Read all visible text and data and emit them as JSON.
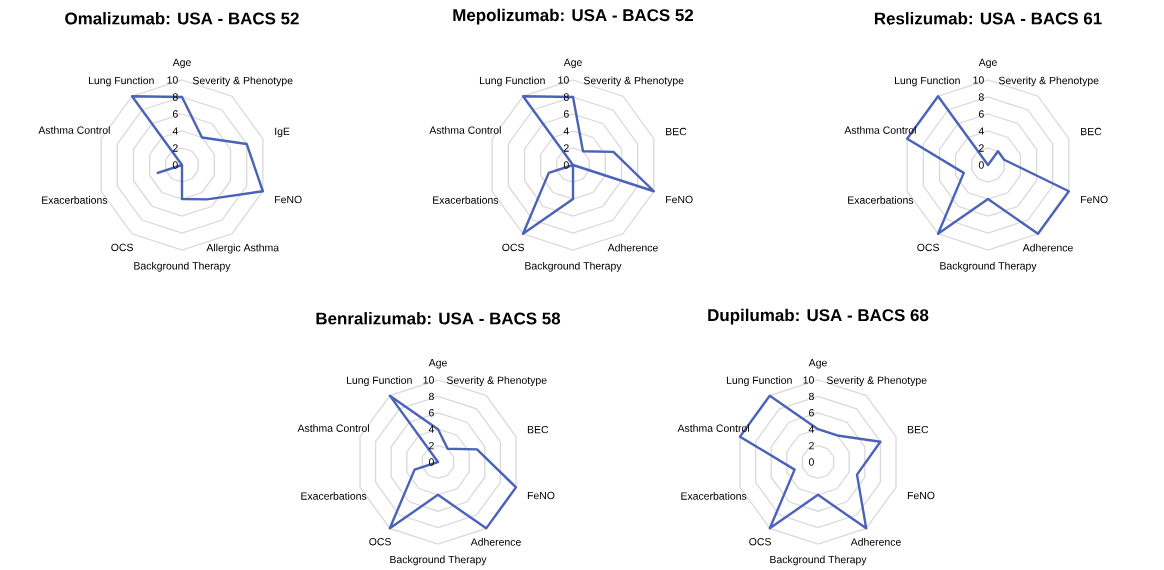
{
  "chart_data": [
    {
      "type": "radar",
      "title": "Omalizumab: USA - BACS 52",
      "categories": [
        "Age",
        "Severity & Phenotype",
        "IgE",
        "FeNO",
        "Allergic Asthma",
        "Background Therapy",
        "OCS",
        "Exacerbations",
        "Asthma Control",
        "Lung Function"
      ],
      "series": [
        {
          "color": "#4a62b8",
          "values": [
            8,
            4,
            8,
            10,
            5,
            4,
            0,
            3,
            0,
            10
          ]
        }
      ],
      "ylim": [
        0,
        10
      ],
      "yticks": [
        0,
        2,
        4,
        6,
        8,
        10
      ],
      "grid": true
    },
    {
      "type": "radar",
      "title": "Mepolizumab: USA - BACS 52",
      "categories": [
        "Age",
        "Severity & Phenotype",
        "BEC",
        "FeNO",
        "Adherence",
        "Background Therapy",
        "OCS",
        "Exacerbations",
        "Asthma Control",
        "Lung Function"
      ],
      "series": [
        {
          "color": "#4a62b8",
          "values": [
            8,
            2,
            5,
            10,
            0,
            4,
            10,
            3,
            0,
            10
          ]
        }
      ],
      "ylim": [
        0,
        10
      ],
      "yticks": [
        0,
        2,
        4,
        6,
        8,
        10
      ],
      "grid": true
    },
    {
      "type": "radar",
      "title": "Reslizumab: USA - BACS 61",
      "categories": [
        "Age",
        "Severity & Phenotype",
        "BEC",
        "FeNO",
        "Adherence",
        "Background Therapy",
        "OCS",
        "Exacerbations",
        "Asthma Control",
        "Lung Function"
      ],
      "series": [
        {
          "color": "#4a62b8",
          "values": [
            0,
            2,
            2,
            10,
            10,
            4,
            10,
            3,
            10,
            10
          ]
        }
      ],
      "ylim": [
        0,
        10
      ],
      "yticks": [
        0,
        2,
        4,
        6,
        8,
        10
      ],
      "grid": true
    },
    {
      "type": "radar",
      "title": "Benralizumab: USA - BACS 58",
      "categories": [
        "Age",
        "Severity & Phenotype",
        "BEC",
        "FeNO",
        "Adherence",
        "Background Therapy",
        "OCS",
        "Exacerbations",
        "Asthma Control",
        "Lung Function"
      ],
      "series": [
        {
          "color": "#4a62b8",
          "values": [
            4,
            2,
            5,
            10,
            10,
            4,
            10,
            3,
            0,
            10
          ]
        }
      ],
      "ylim": [
        0,
        10
      ],
      "yticks": [
        0,
        2,
        4,
        6,
        8,
        10
      ],
      "grid": true
    },
    {
      "type": "radar",
      "title": "Dupilumab: USA - BACS 68",
      "categories": [
        "Age",
        "Severity & Phenotype",
        "BEC",
        "FeNO",
        "Adherence",
        "Background Therapy",
        "OCS",
        "Exacerbations",
        "Asthma Control",
        "Lung Function"
      ],
      "series": [
        {
          "color": "#4a62b8",
          "values": [
            4,
            4,
            8,
            5,
            10,
            4,
            10,
            3,
            10,
            10
          ]
        }
      ],
      "ylim": [
        0,
        10
      ],
      "yticks": [
        0,
        2,
        4,
        6,
        8,
        10
      ],
      "grid": true
    }
  ]
}
